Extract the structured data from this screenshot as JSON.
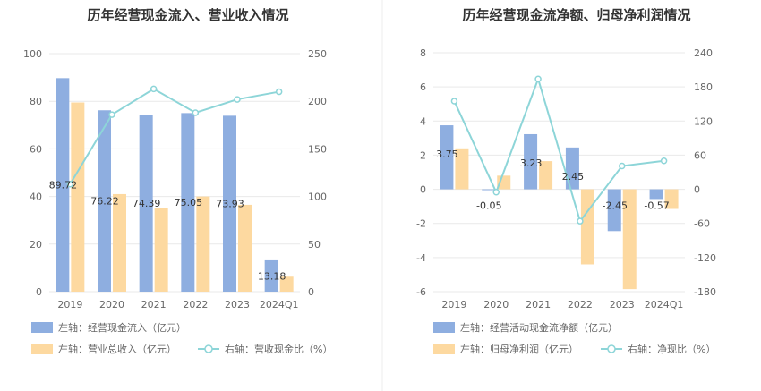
{
  "chart_data": [
    {
      "type": "bar",
      "title": "历年经营现金流入、营业收入情况",
      "categories": [
        "2019",
        "2020",
        "2021",
        "2022",
        "2023",
        "2024Q1"
      ],
      "left_axis": {
        "min": 0,
        "max": 100,
        "ticks": [
          "0",
          "20",
          "40",
          "60",
          "80",
          "100"
        ]
      },
      "right_axis": {
        "min": 0,
        "max": 250,
        "ticks": [
          "0",
          "50",
          "100",
          "150",
          "200",
          "250"
        ]
      },
      "series": [
        {
          "name": "左轴：经营现金流入（亿元）",
          "kind": "bar",
          "axis": "left",
          "color": "#8eaee0",
          "values": [
            89.72,
            76.22,
            74.39,
            75.05,
            73.93,
            13.18
          ],
          "labels": [
            "89.72",
            "76.22",
            "74.39",
            "75.05",
            "73.93",
            "13.18"
          ]
        },
        {
          "name": "左轴：营业总收入（亿元）",
          "kind": "bar",
          "axis": "left",
          "color": "#fdd9a0",
          "values": [
            79.5,
            41.0,
            35.0,
            40.0,
            36.5,
            6.3
          ]
        },
        {
          "name": "右轴：营收现金比（%）",
          "kind": "line",
          "axis": "right",
          "color": "#8dd5d8",
          "values": [
            113,
            186,
            213,
            188,
            202,
            210
          ]
        }
      ],
      "grid": true
    },
    {
      "type": "bar",
      "title": "历年经营现金流净额、归母净利润情况",
      "categories": [
        "2019",
        "2020",
        "2021",
        "2022",
        "2023",
        "2024Q1"
      ],
      "left_axis": {
        "min": -6,
        "max": 8,
        "ticks": [
          "-6",
          "-4",
          "-2",
          "0",
          "2",
          "4",
          "6",
          "8"
        ]
      },
      "right_axis": {
        "min": -180,
        "max": 240,
        "ticks": [
          "-180",
          "-120",
          "-60",
          "0",
          "60",
          "120",
          "180",
          "240"
        ]
      },
      "series": [
        {
          "name": "左轴：经营活动现金流净额（亿元）",
          "kind": "bar",
          "axis": "left",
          "color": "#8eaee0",
          "values": [
            3.75,
            -0.05,
            3.23,
            2.45,
            -2.45,
            -0.57
          ],
          "labels": [
            "3.75",
            "-0.05",
            "3.23",
            "2.45",
            "-2.45",
            "-0.57"
          ]
        },
        {
          "name": "左轴：归母净利润（亿元）",
          "kind": "bar",
          "axis": "left",
          "color": "#fdd9a0",
          "values": [
            2.4,
            0.8,
            1.65,
            -4.4,
            -5.85,
            -1.15
          ]
        },
        {
          "name": "右轴：净现比（%）",
          "kind": "line",
          "axis": "right",
          "color": "#8dd5d8",
          "values": [
            155,
            -5,
            194,
            -56,
            41,
            50
          ]
        }
      ],
      "grid": true
    }
  ]
}
